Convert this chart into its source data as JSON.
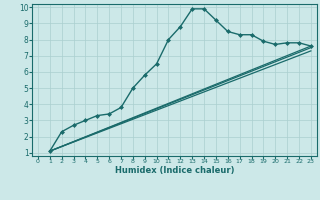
{
  "xlabel": "Humidex (Indice chaleur)",
  "bg_color": "#cce8e8",
  "line_color": "#1a6b6b",
  "grid_color": "#aacfcf",
  "xlim": [
    -0.5,
    23.5
  ],
  "ylim": [
    0.8,
    10.2
  ],
  "xticks": [
    0,
    1,
    2,
    3,
    4,
    5,
    6,
    7,
    8,
    9,
    10,
    11,
    12,
    13,
    14,
    15,
    16,
    17,
    18,
    19,
    20,
    21,
    22,
    23
  ],
  "yticks": [
    1,
    2,
    3,
    4,
    5,
    6,
    7,
    8,
    9,
    10
  ],
  "series": [
    {
      "x": [
        1,
        2,
        3,
        4,
        5,
        6,
        7,
        8,
        9,
        10,
        11,
        12,
        13,
        14,
        15,
        16,
        17,
        18,
        19,
        20,
        21,
        22,
        23
      ],
      "y": [
        1.1,
        2.3,
        2.7,
        3.0,
        3.3,
        3.4,
        3.8,
        5.0,
        5.8,
        6.5,
        8.0,
        8.8,
        9.9,
        9.9,
        9.2,
        8.5,
        8.3,
        8.3,
        7.9,
        7.7,
        7.8,
        7.8,
        7.6
      ],
      "marker": "D",
      "markersize": 2.0,
      "linewidth": 1.0
    },
    {
      "x": [
        1,
        23
      ],
      "y": [
        1.1,
        7.6
      ],
      "marker": null,
      "markersize": 0,
      "linewidth": 0.9
    },
    {
      "x": [
        1,
        23
      ],
      "y": [
        1.1,
        7.5
      ],
      "marker": null,
      "markersize": 0,
      "linewidth": 0.9
    },
    {
      "x": [
        1,
        23
      ],
      "y": [
        1.1,
        7.3
      ],
      "marker": null,
      "markersize": 0,
      "linewidth": 0.9
    }
  ]
}
